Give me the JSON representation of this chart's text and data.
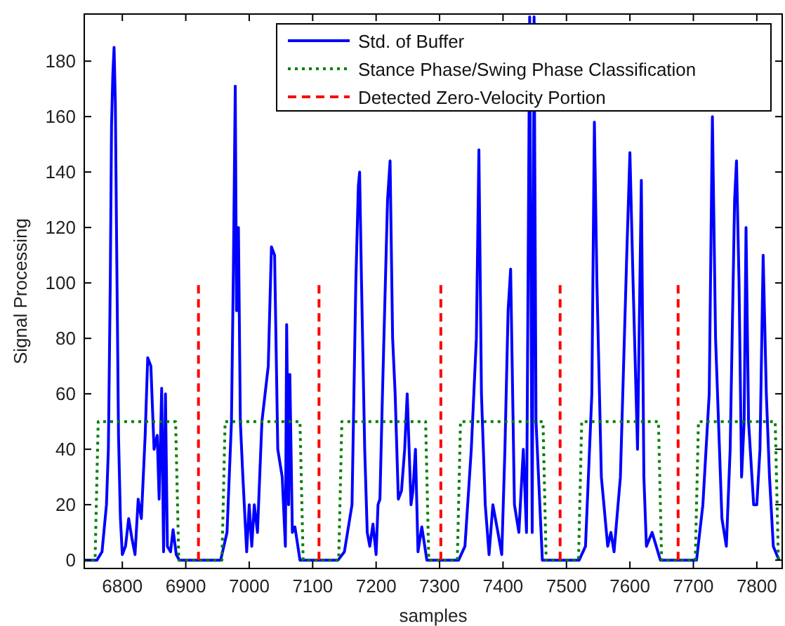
{
  "chart_data": {
    "type": "line",
    "xlabel": "samples",
    "ylabel": "Signal Processing",
    "xlim": [
      6740,
      7840
    ],
    "ylim": [
      -3,
      197
    ],
    "xticks": [
      6800,
      6900,
      7000,
      7100,
      7200,
      7300,
      7400,
      7500,
      7600,
      7700,
      7800
    ],
    "yticks": [
      0,
      20,
      40,
      60,
      80,
      100,
      120,
      140,
      160,
      180
    ],
    "grid": false,
    "legend": "top right",
    "series": [
      {
        "name": "Std. of Buffer",
        "color": "#0000ff",
        "line_style": "solid",
        "x": [
          6740,
          6760,
          6768,
          6775,
          6778,
          6781,
          6783,
          6785,
          6787,
          6789,
          6791,
          6794,
          6797,
          6800,
          6805,
          6810,
          6815,
          6820,
          6825,
          6830,
          6836,
          6840,
          6845,
          6850,
          6855,
          6858,
          6862,
          6865,
          6868,
          6871,
          6876,
          6880,
          6885,
          6890,
          6955,
          6965,
          6972,
          6975,
          6978,
          6980,
          6983,
          6986,
          6990,
          6996,
          7000,
          7004,
          7008,
          7013,
          7020,
          7030,
          7035,
          7040,
          7045,
          7052,
          7057,
          7059,
          7062,
          7064,
          7068,
          7072,
          7080,
          7140,
          7150,
          7162,
          7168,
          7172,
          7174,
          7177,
          7182,
          7186,
          7190,
          7195,
          7200,
          7203,
          7206,
          7210,
          7218,
          7222,
          7226,
          7230,
          7235,
          7240,
          7245,
          7249,
          7255,
          7258,
          7262,
          7266,
          7272,
          7280,
          7330,
          7340,
          7350,
          7358,
          7362,
          7366,
          7372,
          7378,
          7384,
          7388,
          7392,
          7398,
          7403,
          7408,
          7412,
          7418,
          7425,
          7432,
          7437,
          7442,
          7446,
          7449,
          7452,
          7456,
          7462,
          7520,
          7530,
          7540,
          7544,
          7548,
          7555,
          7565,
          7570,
          7575,
          7585,
          7595,
          7600,
          7605,
          7612,
          7618,
          7622,
          7626,
          7635,
          7648,
          7705,
          7715,
          7725,
          7730,
          7735,
          7745,
          7752,
          7758,
          7765,
          7768,
          7772,
          7776,
          7780,
          7783,
          7787,
          7795,
          7800,
          7805,
          7810,
          7815,
          7820,
          7826,
          7835
        ],
        "values": [
          0,
          0,
          3,
          20,
          40,
          100,
          157,
          175,
          185,
          165,
          115,
          45,
          15,
          2,
          5,
          15,
          8,
          2,
          22,
          15,
          45,
          73,
          70,
          40,
          45,
          22,
          62,
          3,
          60,
          5,
          3,
          11,
          2,
          0,
          0,
          10,
          50,
          104,
          171,
          90,
          120,
          50,
          30,
          3,
          20,
          5,
          20,
          10,
          50,
          70,
          113,
          110,
          40,
          30,
          5,
          85,
          20,
          67,
          10,
          12,
          0,
          0,
          3,
          20,
          100,
          135,
          140,
          100,
          40,
          10,
          5,
          13,
          2,
          20,
          22,
          60,
          130,
          144,
          80,
          60,
          22,
          25,
          40,
          60,
          20,
          25,
          40,
          3,
          12,
          0,
          0,
          5,
          40,
          80,
          148,
          60,
          20,
          2,
          20,
          15,
          10,
          2,
          40,
          90,
          105,
          20,
          10,
          40,
          10,
          196,
          10,
          196,
          50,
          30,
          0,
          0,
          5,
          60,
          158,
          100,
          30,
          5,
          10,
          3,
          30,
          110,
          147,
          100,
          40,
          137,
          30,
          5,
          10,
          0,
          0,
          20,
          60,
          160,
          80,
          15,
          5,
          40,
          130,
          144,
          100,
          30,
          50,
          120,
          50,
          20,
          20,
          40,
          110,
          60,
          30,
          5,
          0
        ]
      },
      {
        "name": "Stance Phase/Swing Phase Classification",
        "color": "#008000",
        "line_style": "dotted",
        "x": [
          6740,
          6757,
          6762,
          6884,
          6889,
          6957,
          6962,
          7080,
          7085,
          7141,
          7146,
          7278,
          7283,
          7328,
          7333,
          7463,
          7468,
          7519,
          7524,
          7645,
          7650,
          7703,
          7708,
          7829,
          7834,
          7840
        ],
        "values": [
          0,
          0,
          50,
          50,
          0,
          0,
          50,
          50,
          0,
          0,
          50,
          50,
          0,
          0,
          50,
          50,
          0,
          0,
          50,
          50,
          0,
          0,
          50,
          50,
          0,
          0
        ]
      },
      {
        "name": "Detected Zero-Velocity Portion",
        "color": "#ff0000",
        "line_style": "dashed",
        "x": [
          6920,
          6920,
          6921,
          7110,
          7110,
          7111,
          7302,
          7302,
          7303,
          7490,
          7490,
          7491,
          7676,
          7676
        ],
        "values": [
          0,
          100,
          null,
          0,
          100,
          null,
          0,
          100,
          null,
          0,
          100,
          null,
          0,
          100
        ]
      }
    ]
  }
}
